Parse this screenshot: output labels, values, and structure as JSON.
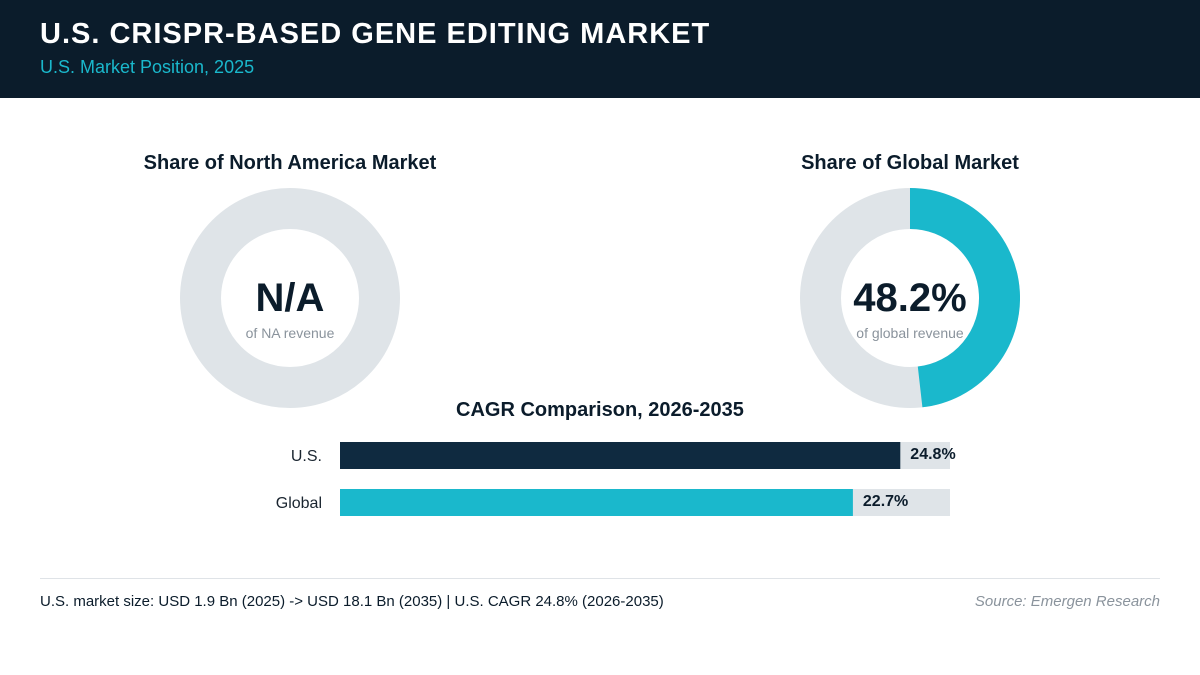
{
  "header": {
    "title": "U.S. CRISPR-BASED GENE EDITING MARKET",
    "subtitle": "U.S. Market Position, 2025"
  },
  "colors": {
    "header_bg": "#0b1c2b",
    "accent": "#1ab8cc",
    "dark_bar": "#0f2a40",
    "track": "#dfe4e8"
  },
  "chart_data": [
    {
      "type": "pie",
      "title": "Share of North America Market",
      "value_label": "N/A",
      "caption": "of NA revenue",
      "share_percent": null
    },
    {
      "type": "pie",
      "title": "Share of Global Market",
      "value_label": "48.2%",
      "caption": "of global revenue",
      "share_percent": 48.2
    },
    {
      "type": "bar",
      "title": "CAGR Comparison, 2026-2035",
      "categories": [
        "U.S.",
        "Global"
      ],
      "values": [
        24.8,
        22.7
      ],
      "value_labels": [
        "24.8%",
        "22.7%"
      ],
      "xlim": [
        0,
        27
      ]
    }
  ],
  "footer": {
    "note": "U.S. market size: USD 1.9 Bn (2025) -> USD 18.1 Bn (2035)  |  U.S. CAGR 24.8% (2026-2035)",
    "source": "Source: Emergen Research"
  }
}
